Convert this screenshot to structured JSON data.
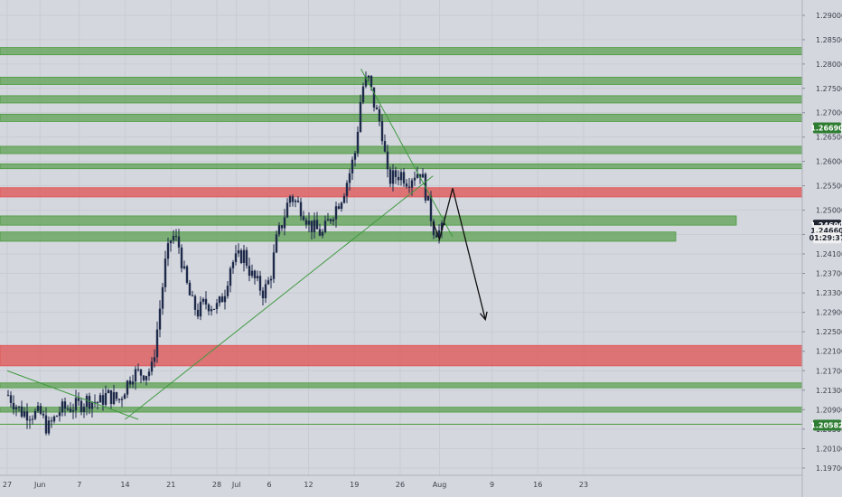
{
  "chart_data": {
    "type": "candlestick",
    "symbol": "",
    "title": "",
    "xlabel": "",
    "ylabel": "",
    "ylim": [
      1.194,
      1.293
    ],
    "y_ticks": [
      "1.29000",
      "1.28500",
      "1.28000",
      "1.27500",
      "1.27000",
      "1.26500",
      "1.26000",
      "1.25500",
      "1.25000",
      "1.24500",
      "1.24100",
      "1.23700",
      "1.23300",
      "1.22900",
      "1.22500",
      "1.22100",
      "1.21700",
      "1.21300",
      "1.20900",
      "1.20500",
      "1.20100",
      "1.19700"
    ],
    "x_ticks": [
      "27",
      "Jun",
      "7",
      "14",
      "21",
      "28",
      "Jul",
      "6",
      "12",
      "19",
      "26",
      "Aug",
      "9",
      "16",
      "23"
    ],
    "price_badges": [
      {
        "label": "1.26690",
        "value": 1.2669,
        "color": "#2e7d32",
        "text_color": "#ffffff"
      },
      {
        "label": "1.24690",
        "value": 1.2469,
        "color": "#1f2530",
        "text_color": "#ffffff"
      },
      {
        "label": "1.24660",
        "value": 1.2458,
        "color": "#f0f0f0",
        "text_color": "#1f2530"
      },
      {
        "label": "01:29:37",
        "value": 1.2443,
        "color": "#f0f0f0",
        "text_color": "#1f2530"
      },
      {
        "label": "1.20582",
        "value": 1.20582,
        "color": "#2e7d32",
        "text_color": "#ffffff"
      }
    ],
    "support_resistance_zones": [
      {
        "type": "resistance",
        "top": 1.2834,
        "bottom": 1.2819,
        "color": "#4c9a3e"
      },
      {
        "type": "resistance",
        "top": 1.2773,
        "bottom": 1.2758,
        "color": "#4c9a3e"
      },
      {
        "type": "resistance",
        "top": 1.2735,
        "bottom": 1.272,
        "color": "#4c9a3e"
      },
      {
        "type": "resistance",
        "top": 1.2697,
        "bottom": 1.2682,
        "color": "#4c9a3e"
      },
      {
        "type": "resistance",
        "top": 1.2631,
        "bottom": 1.2616,
        "color": "#4c9a3e"
      },
      {
        "type": "resistance",
        "top": 1.2595,
        "bottom": 1.2585,
        "color": "#4c9a3e"
      },
      {
        "type": "key-resistance",
        "top": 1.2546,
        "bottom": 1.2527,
        "color": "#e05252"
      },
      {
        "type": "support",
        "top": 1.2488,
        "bottom": 1.2469,
        "color": "#4c9a3e"
      },
      {
        "type": "support",
        "top": 1.2455,
        "bottom": 1.2436,
        "color": "#4c9a3e"
      },
      {
        "type": "key-support",
        "top": 1.2222,
        "bottom": 1.218,
        "color": "#e05252"
      },
      {
        "type": "support",
        "top": 1.2145,
        "bottom": 1.2135,
        "color": "#4c9a3e"
      },
      {
        "type": "support",
        "top": 1.2095,
        "bottom": 1.2085,
        "color": "#4c9a3e"
      }
    ],
    "horizontal_lines": [
      1.206
    ],
    "trendlines": [
      {
        "from": {
          "date": "Jun 14",
          "price": 1.207
        },
        "to": {
          "date": "Jul 31",
          "price": 1.257
        },
        "color": "#3f9a3f"
      },
      {
        "from": {
          "date": "Jul 20",
          "price": 1.279
        },
        "to": {
          "date": "Aug 3",
          "price": 1.2445
        },
        "color": "#3f9a3f"
      },
      {
        "from": {
          "date": "May 27",
          "price": 1.217
        },
        "to": {
          "date": "Jun 16",
          "price": 1.207
        },
        "color": "#3f9a3f"
      }
    ],
    "projection_path": [
      {
        "date": "Jul 31",
        "price": 1.2475
      },
      {
        "date": "Aug 1",
        "price": 1.244
      },
      {
        "date": "Aug 3",
        "price": 1.2545
      },
      {
        "date": "Aug 8",
        "price": 1.2275
      }
    ],
    "price_path": [
      {
        "date": "May 27",
        "price": 1.212
      },
      {
        "date": "May 29",
        "price": 1.2085
      },
      {
        "date": "Jun 1",
        "price": 1.208
      },
      {
        "date": "Jun 2",
        "price": 1.205
      },
      {
        "date": "Jun 4",
        "price": 1.209
      },
      {
        "date": "Jun 7",
        "price": 1.21
      },
      {
        "date": "Jun 8",
        "price": 1.211
      },
      {
        "date": "Jun 10",
        "price": 1.2105
      },
      {
        "date": "Jun 11",
        "price": 1.212
      },
      {
        "date": "Jun 13",
        "price": 1.211
      },
      {
        "date": "Jun 14",
        "price": 1.214
      },
      {
        "date": "Jun 15",
        "price": 1.2165
      },
      {
        "date": "Jun 17",
        "price": 1.2165
      },
      {
        "date": "Jun 18",
        "price": 1.2175
      },
      {
        "date": "Jun 19",
        "price": 1.228
      },
      {
        "date": "Jun 20",
        "price": 1.239
      },
      {
        "date": "Jun 21",
        "price": 1.245
      },
      {
        "date": "Jun 22",
        "price": 1.243
      },
      {
        "date": "Jun 23",
        "price": 1.236
      },
      {
        "date": "Jun 24",
        "price": 1.231
      },
      {
        "date": "Jun 25",
        "price": 1.229
      },
      {
        "date": "Jun 26",
        "price": 1.231
      },
      {
        "date": "Jun 28",
        "price": 1.23
      },
      {
        "date": "Jun 29",
        "price": 1.233
      },
      {
        "date": "Jun 30",
        "price": 1.239
      },
      {
        "date": "Jul 2",
        "price": 1.241
      },
      {
        "date": "Jul 3",
        "price": 1.237
      },
      {
        "date": "Jul 5",
        "price": 1.233
      },
      {
        "date": "Jul 6",
        "price": 1.236
      },
      {
        "date": "Jul 7",
        "price": 1.244
      },
      {
        "date": "Jul 8",
        "price": 1.248
      },
      {
        "date": "Jul 9",
        "price": 1.253
      },
      {
        "date": "Jul 11",
        "price": 1.25
      },
      {
        "date": "Jul 12",
        "price": 1.247
      },
      {
        "date": "Jul 14",
        "price": 1.245
      },
      {
        "date": "Jul 15",
        "price": 1.248
      },
      {
        "date": "Jul 17",
        "price": 1.253
      },
      {
        "date": "Jul 18",
        "price": 1.257
      },
      {
        "date": "Jul 19",
        "price": 1.262
      },
      {
        "date": "Jul 20",
        "price": 1.275
      },
      {
        "date": "Jul 21",
        "price": 1.277
      },
      {
        "date": "Jul 22",
        "price": 1.271
      },
      {
        "date": "Jul 23",
        "price": 1.267
      },
      {
        "date": "Jul 24",
        "price": 1.256
      },
      {
        "date": "Jul 25",
        "price": 1.257
      },
      {
        "date": "Jul 26",
        "price": 1.2575
      },
      {
        "date": "Jul 27",
        "price": 1.256
      },
      {
        "date": "Jul 28",
        "price": 1.2575
      },
      {
        "date": "Jul 29",
        "price": 1.258
      },
      {
        "date": "Jul 30",
        "price": 1.252
      },
      {
        "date": "Jul 31",
        "price": 1.246
      },
      {
        "date": "Aug 1",
        "price": 1.2455
      },
      {
        "date": "Aug 2",
        "price": 1.2469
      }
    ]
  }
}
